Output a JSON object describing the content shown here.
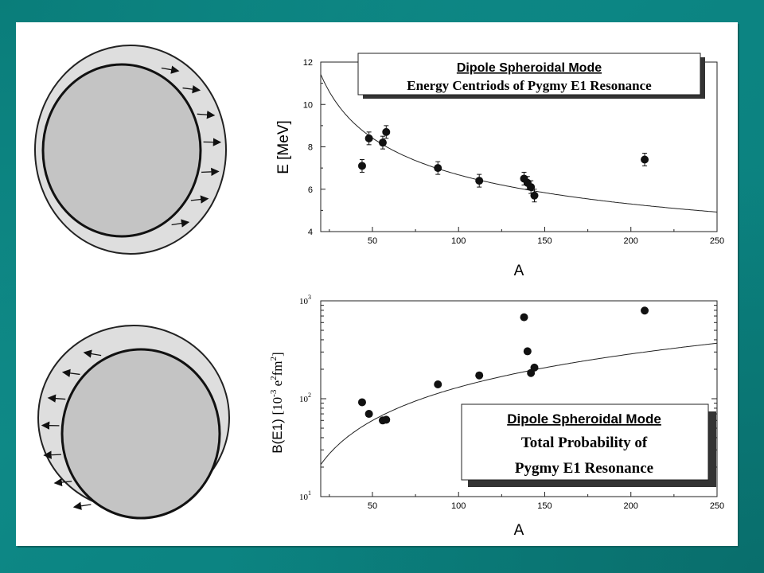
{
  "chart_data": [
    {
      "type": "scatter",
      "title": "",
      "legend_box": {
        "line1": "Dipole Spheroidal Mode",
        "line2": "Energy Centriods of Pygmy E1 Resonance"
      },
      "xlabel": "A",
      "ylabel": "E [MeV]",
      "xlim": [
        20,
        250
      ],
      "ylim": [
        4,
        12
      ],
      "xticks": [
        50,
        100,
        150,
        200,
        250
      ],
      "yticks": [
        4,
        6,
        8,
        10,
        12
      ],
      "points": [
        {
          "x": 44,
          "y": 7.1,
          "err": 0.3
        },
        {
          "x": 48,
          "y": 8.4,
          "err": 0.3
        },
        {
          "x": 56,
          "y": 8.2,
          "err": 0.3
        },
        {
          "x": 58,
          "y": 8.7,
          "err": 0.3
        },
        {
          "x": 88,
          "y": 7.0,
          "err": 0.3
        },
        {
          "x": 112,
          "y": 6.4,
          "err": 0.3
        },
        {
          "x": 138,
          "y": 6.5,
          "err": 0.3
        },
        {
          "x": 140,
          "y": 6.3,
          "err": 0.3
        },
        {
          "x": 142,
          "y": 6.1,
          "err": 0.3
        },
        {
          "x": 144,
          "y": 5.7,
          "err": 0.3
        },
        {
          "x": 208,
          "y": 7.4,
          "err": 0.3
        }
      ],
      "curve": {
        "form": "a*A^b",
        "a": 31.0,
        "b": -0.3333
      }
    },
    {
      "type": "scatter",
      "title": "",
      "legend_box": {
        "line1": "Dipole Spheroidal Mode",
        "line2": "Total Probability of",
        "line3": "Pygmy E1 Resonance"
      },
      "xlabel": "A",
      "ylabel_main": "B(E1)",
      "ylabel_unit_open": "[10",
      "ylabel_exp1": "-3",
      "ylabel_e": " e",
      "ylabel_exp2": "2",
      "ylabel_fm": "fm",
      "ylabel_exp3": "2",
      "ylabel_close": "]",
      "xlim": [
        20,
        250
      ],
      "ylim_log10": [
        1,
        3
      ],
      "xticks": [
        50,
        100,
        150,
        200,
        250
      ],
      "ytick_base": "10",
      "ytick_exps": [
        "1",
        "2",
        "3"
      ],
      "points": [
        {
          "x": 44,
          "y": 92
        },
        {
          "x": 48,
          "y": 70
        },
        {
          "x": 56,
          "y": 60
        },
        {
          "x": 58,
          "y": 61
        },
        {
          "x": 88,
          "y": 140
        },
        {
          "x": 112,
          "y": 173
        },
        {
          "x": 138,
          "y": 680
        },
        {
          "x": 140,
          "y": 305
        },
        {
          "x": 142,
          "y": 183
        },
        {
          "x": 144,
          "y": 208
        },
        {
          "x": 208,
          "y": 795
        }
      ],
      "curve": {
        "form": "a*A^b",
        "a": 0.72,
        "b": 1.13
      }
    }
  ],
  "diagrams": {
    "top": {
      "arrow_direction": "right"
    },
    "bottom": {
      "arrow_direction": "left"
    }
  }
}
